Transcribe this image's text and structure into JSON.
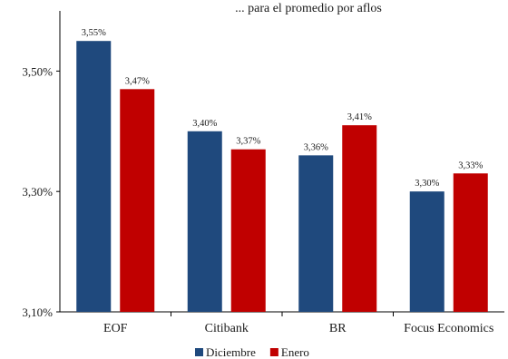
{
  "chart_data": {
    "type": "bar",
    "title": "... para el promedio por aflos",
    "categories": [
      "EOF",
      "Citibank",
      "BR",
      "Focus Economics"
    ],
    "series": [
      {
        "name": "Diciembre",
        "color": "#1f497d",
        "values": [
          3.55,
          3.4,
          3.36,
          3.3
        ],
        "labels": [
          "3,55%",
          "3,40%",
          "3,36%",
          "3,30%"
        ]
      },
      {
        "name": "Enero",
        "color": "#c00000",
        "values": [
          3.47,
          3.37,
          3.41,
          3.33
        ],
        "labels": [
          "3,47%",
          "3,37%",
          "3,41%",
          "3,33%"
        ]
      }
    ],
    "ylim": [
      3.1,
      3.6
    ],
    "yticks": [
      3.1,
      3.3,
      3.5
    ],
    "ytick_labels": [
      "3,10%",
      "3,30%",
      "3,50%"
    ],
    "grid": false,
    "legend_position": "bottom"
  }
}
